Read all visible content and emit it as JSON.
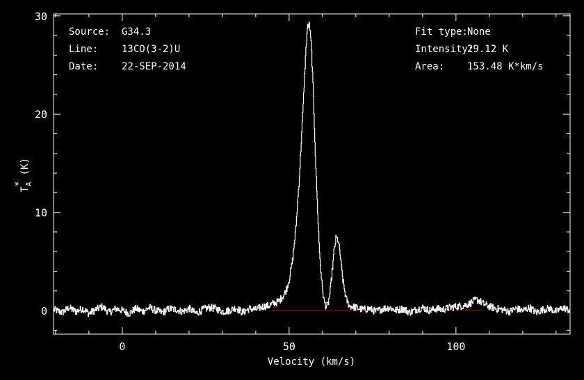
{
  "chart_data": {
    "type": "line",
    "xlabel": "Velocity (km/s)",
    "ylabel_main": "T",
    "ylabel_sub": "A",
    "ylabel_sup": "*",
    "ylabel_unit": " (K)",
    "xlim": [
      -20.6,
      134.2
    ],
    "ylim": [
      -2.4,
      30.2
    ],
    "x_ticks": [
      0,
      50,
      100
    ],
    "y_ticks": [
      0,
      10,
      20,
      30
    ],
    "grid": false,
    "info_left": [
      {
        "label": "Source:",
        "value": "G34.3"
      },
      {
        "label": "Line:",
        "value": "13CO(3-2)U"
      },
      {
        "label": "Date:",
        "value": "22-SEP-2014"
      }
    ],
    "info_right": [
      {
        "label": "Fit type:",
        "value": "None"
      },
      {
        "label": "Intensity:",
        "value": "29.12 K"
      },
      {
        "label": "Area:",
        "value": "153.48 K*km/s"
      }
    ],
    "baseline": {
      "x": [
        45,
        108
      ],
      "y": [
        0,
        0
      ],
      "color": "#cc0000"
    },
    "series": [
      {
        "color": "#ffffff",
        "x": [
          -20.6,
          -18,
          -16,
          -14,
          -12,
          -10,
          -8,
          -6,
          -4,
          -2,
          0,
          2,
          4,
          6,
          8,
          10,
          12,
          14,
          16,
          18,
          20,
          22,
          24,
          26,
          28,
          30,
          32,
          34,
          36,
          38,
          40,
          42,
          44,
          45,
          46,
          47,
          48,
          49,
          50,
          51,
          52,
          53,
          54,
          54.8,
          55.4,
          56,
          56.6,
          57.2,
          58,
          59,
          59.8,
          60.4,
          61,
          61.6,
          62.2,
          62.8,
          63.4,
          64,
          64.6,
          65.2,
          66,
          67,
          68,
          70,
          72,
          74,
          76,
          78,
          80,
          82,
          84,
          86,
          88,
          90,
          92,
          94,
          96,
          98,
          100,
          102,
          104,
          105,
          106,
          107,
          108,
          110,
          112,
          114,
          116,
          118,
          120,
          122,
          124,
          126,
          128,
          130,
          132,
          134.2
        ],
        "y": [
          0.1,
          -0.2,
          0.3,
          -0.1,
          0.2,
          -0.3,
          0.1,
          0.4,
          -0.2,
          0.2,
          0.0,
          -0.3,
          0.2,
          -0.1,
          0.3,
          0.0,
          -0.2,
          0.2,
          0.1,
          -0.1,
          0.2,
          -0.3,
          0.1,
          0.3,
          0.2,
          -0.1,
          0.0,
          0.3,
          -0.2,
          0.2,
          0.1,
          0.4,
          0.5,
          0.7,
          0.8,
          1.0,
          1.4,
          2.0,
          3.2,
          5.2,
          8.5,
          13.5,
          19.8,
          25.5,
          28.8,
          29.1,
          27.0,
          22.0,
          14.0,
          6.2,
          2.6,
          1.0,
          0.4,
          0.6,
          1.8,
          3.8,
          6.0,
          7.4,
          7.2,
          5.8,
          3.2,
          1.2,
          0.5,
          0.3,
          0.1,
          0.2,
          -0.1,
          0.2,
          0.3,
          0.0,
          0.2,
          -0.2,
          0.1,
          0.3,
          0.0,
          0.2,
          0.1,
          0.3,
          0.4,
          0.5,
          0.7,
          0.9,
          1.1,
          1.0,
          0.7,
          0.4,
          0.2,
          0.1,
          -0.1,
          0.2,
          0.0,
          0.3,
          -0.2,
          0.1,
          0.2,
          -0.1,
          0.3,
          0.0
        ]
      }
    ]
  }
}
